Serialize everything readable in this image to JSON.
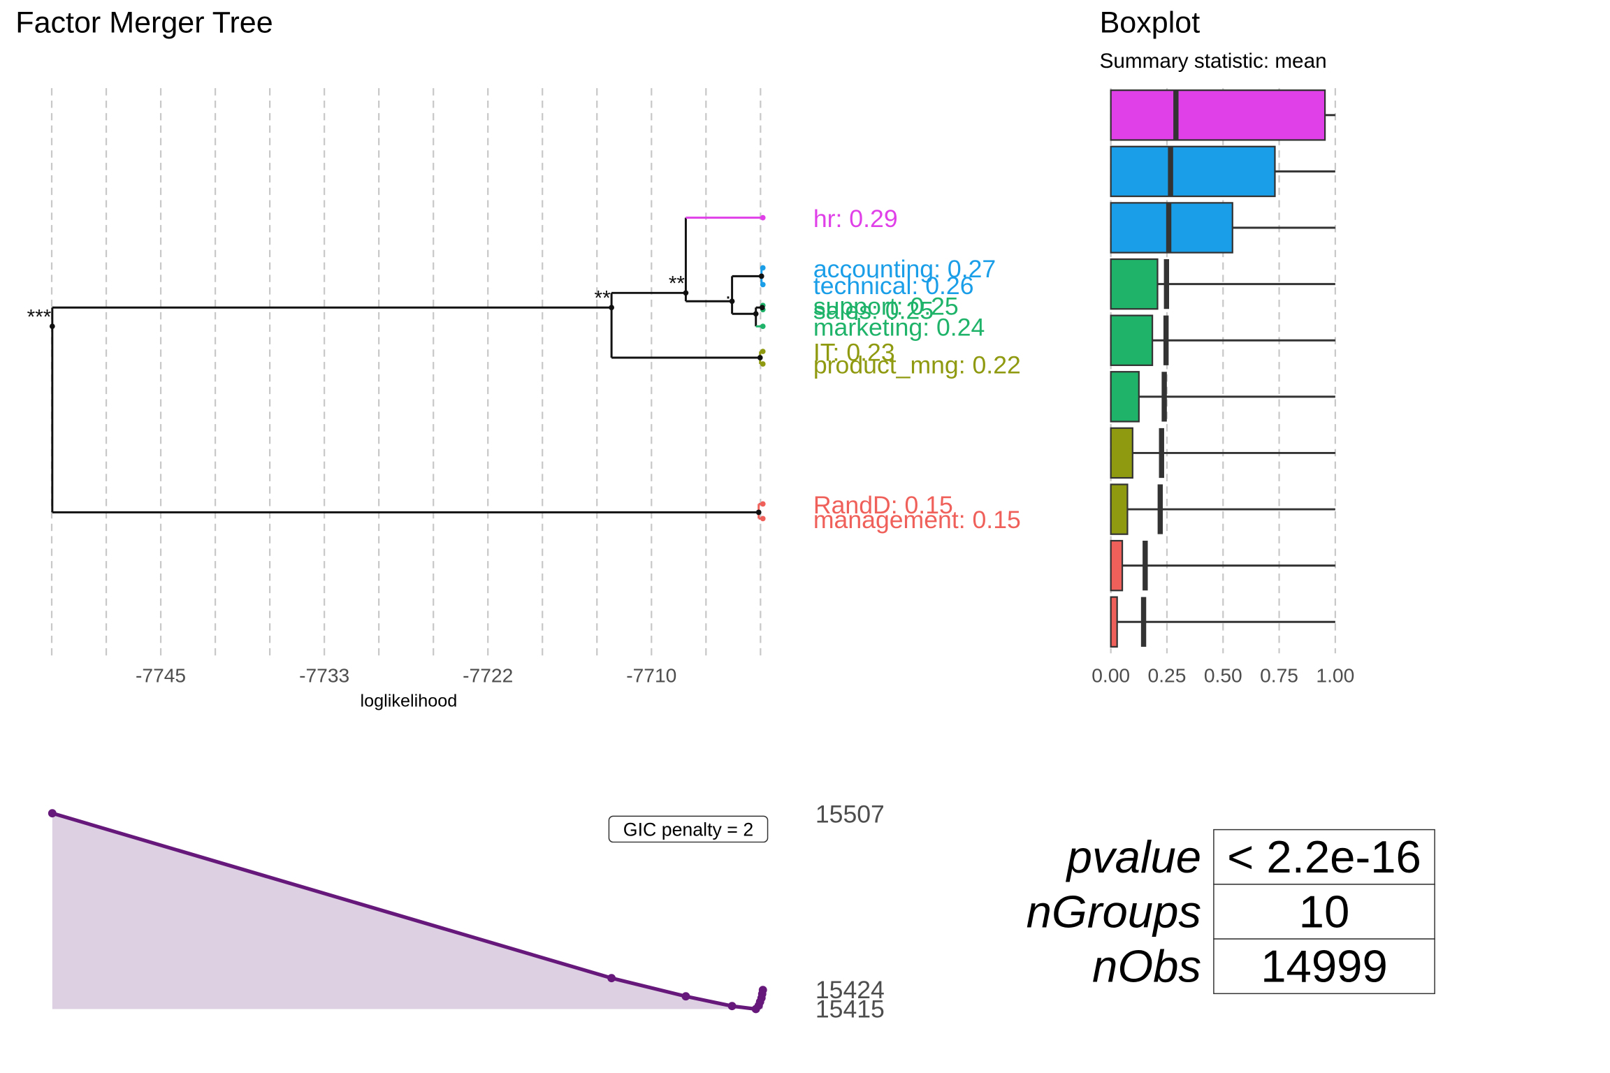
{
  "chart_data": [
    {
      "type": "tree",
      "title": "Factor Merger Tree",
      "xlabel": "loglikelihood",
      "xlim": [
        -7753.47,
        -7701.29
      ],
      "xticks": [
        {
          "value": -7744.96,
          "label": "-7745"
        },
        {
          "value": -7733.29,
          "label": "-7733"
        },
        {
          "value": -7721.62,
          "label": "-7722"
        },
        {
          "value": -7709.95,
          "label": "-7710"
        }
      ],
      "xgrid": [
        -7752.74,
        -7748.85,
        -7744.96,
        -7741.07,
        -7737.18,
        -7733.29,
        -7729.4,
        -7725.51,
        -7721.62,
        -7717.73,
        -7713.84,
        -7709.95,
        -7706.06,
        -7702.17
      ],
      "ylim": [
        0.0815,
        0.352
      ],
      "leaf_loglik": -7702.0,
      "leaves": [
        {
          "label": "hr: 0.29",
          "mean": 0.29,
          "color": "#e040e8"
        },
        {
          "label": "accounting: 0.27",
          "mean": 0.266,
          "color": "#1a9ee8"
        },
        {
          "label": "technical: 0.26",
          "mean": 0.258,
          "color": "#1a9ee8"
        },
        {
          "label": "support: 0.25",
          "mean": 0.248,
          "color": "#1fb36a"
        },
        {
          "label": "sales: 0.25",
          "mean": 0.246,
          "color": "#1fb36a"
        },
        {
          "label": "marketing: 0.24",
          "mean": 0.238,
          "color": "#1fb36a"
        },
        {
          "label": "IT: 0.23",
          "mean": 0.226,
          "color": "#8f9a10"
        },
        {
          "label": "product_mng: 0.22",
          "mean": 0.22,
          "color": "#8f9a10"
        },
        {
          "label": "RandD: 0.15",
          "mean": 0.153,
          "color": "#f0605a"
        },
        {
          "label": "management: 0.15",
          "mean": 0.146,
          "color": "#f0605a"
        }
      ],
      "merge": [
        [
          -4,
          -5
        ],
        [
          -2,
          -3
        ],
        [
          -7,
          -8
        ],
        [
          -9,
          -10
        ],
        [
          1,
          -6
        ],
        [
          2,
          5
        ],
        [
          -1,
          6
        ],
        [
          7,
          3
        ],
        [
          8,
          4
        ]
      ],
      "merge_loglik": [
        -7702.05,
        -7702.1,
        -7702.2,
        -7702.3,
        -7702.5,
        -7704.2,
        -7707.5,
        -7712.8,
        -7752.7
      ],
      "merge_mean": [
        0.247,
        0.262,
        0.223,
        0.149,
        0.244,
        0.25,
        0.254,
        0.247,
        0.238
      ],
      "merge_labels": [
        null,
        null,
        null,
        null,
        null,
        ".",
        "**",
        "**",
        "***"
      ]
    },
    {
      "type": "boxplot",
      "title": "Boxplot",
      "subtitle": "Summary statistic: mean",
      "xlim": [
        -0.05,
        1.05
      ],
      "xticks": [
        {
          "value": 0,
          "label": "0.00"
        },
        0.25,
        {
          "value": 0.5,
          "label": "0.50"
        },
        0.75,
        {
          "value": 1,
          "label": "1.00"
        }
      ],
      "grid": true,
      "colors": [
        "#e040e8",
        "#1a9ee8",
        "#1a9ee8",
        "#1fb36a",
        "#1fb36a",
        "#1fb36a",
        "#8f9a10",
        "#8f9a10",
        "#f0605a",
        "#f0605a"
      ],
      "q1": [
        0,
        0,
        0,
        0,
        0,
        0,
        0,
        0,
        0,
        0
      ],
      "q3": [
        0.954,
        0.731,
        0.542,
        0.208,
        0.185,
        0.125,
        0.097,
        0.074,
        0.051,
        0.028
      ],
      "max": [
        1,
        1,
        1,
        1,
        1,
        1,
        1,
        1,
        1,
        1
      ],
      "means": [
        0.29,
        0.266,
        0.258,
        0.248,
        0.246,
        0.238,
        0.226,
        0.22,
        0.153,
        0.146
      ]
    },
    {
      "type": "area",
      "annotation": "GIC penalty = 2",
      "xlim": [
        -7753.47,
        -7701.29
      ],
      "x": [
        -7702.0,
        -7702.05,
        -7702.1,
        -7702.2,
        -7702.3,
        -7702.5,
        -7704.2,
        -7707.5,
        -7712.8,
        -7752.7
      ],
      "values": [
        15424,
        15422.1,
        15420.2,
        15418.4,
        15416.6,
        15415,
        15416.4,
        15421,
        15429.6,
        15507.4
      ],
      "ylim": [
        15415,
        15507
      ],
      "yticks": [
        15507,
        15424,
        15415
      ],
      "color": "#66197a",
      "fill": "#ddd0e2"
    }
  ],
  "table": {
    "rows": [
      [
        "pvalue",
        "< 2.2e-16"
      ],
      [
        "nGroups",
        10
      ],
      [
        "nObs",
        14999
      ]
    ]
  }
}
